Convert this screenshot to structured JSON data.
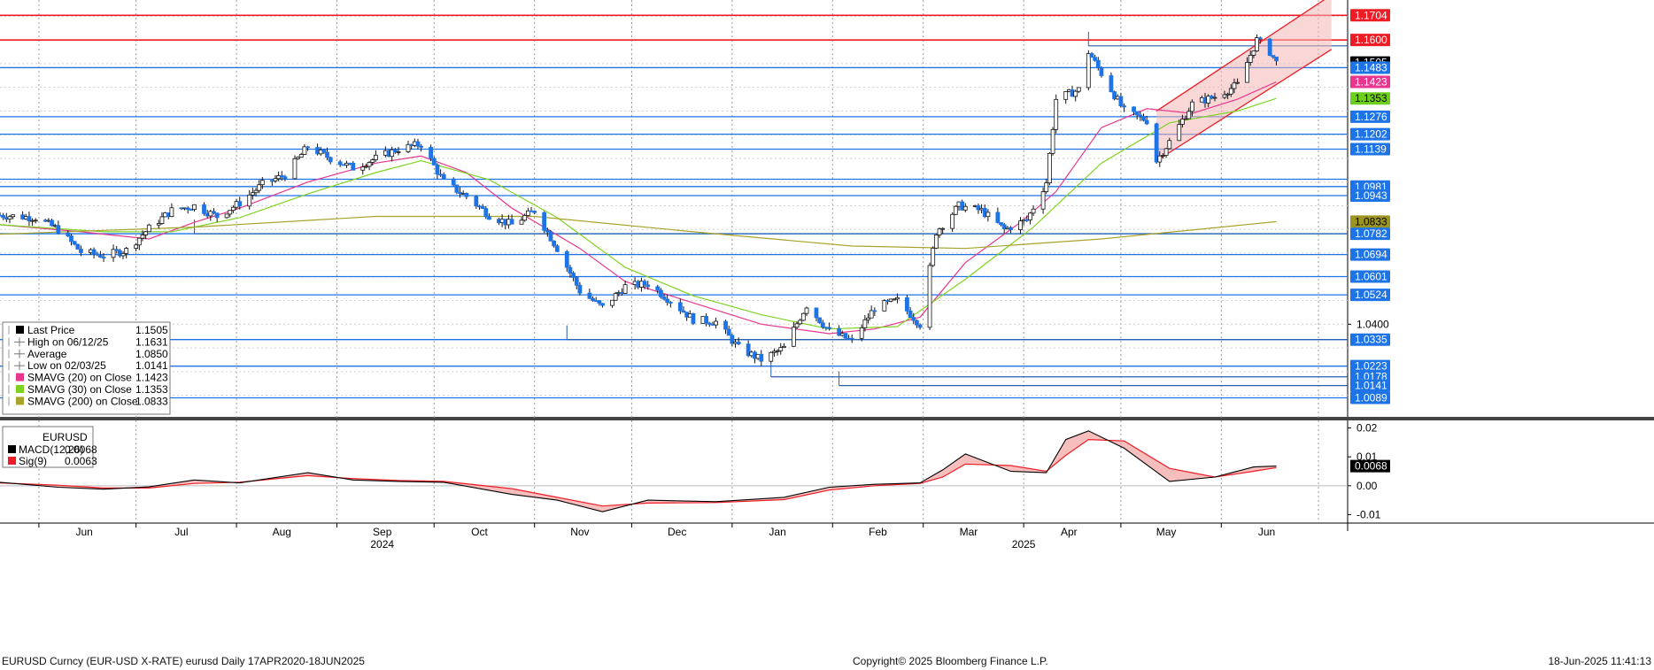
{
  "footer": {
    "left": "EURUSD Curncy (EUR-USD X-RATE) eurusd  Daily 17APR2020-18JUN2025",
    "center": "Copyright© 2025 Bloomberg Finance L.P.",
    "right": "18-Jun-2025 11:41:13"
  },
  "colors": {
    "candle": "#1e74e6",
    "hline": "#1e74e6",
    "resistance": "#ee1c25",
    "sma20": "#e8368f",
    "sma30": "#7ed321",
    "sma200": "#a8a32a",
    "macd": "#000000",
    "signal": "#ee1c25",
    "channel_fill": "#f4b6b6"
  },
  "chart_data": {
    "type": "candlestick",
    "x_axis": {
      "month_labels": [
        "Jun",
        "Jul",
        "Aug",
        "Sep",
        "Oct",
        "Nov",
        "Dec",
        "Jan",
        "Feb",
        "Mar",
        "Apr",
        "May",
        "Jun"
      ],
      "year_labels": [
        "2024",
        "2025"
      ],
      "start": "2024-05-20",
      "end": "2025-07-10"
    },
    "price_axis": {
      "min": 1.002,
      "max": 1.175,
      "tick_labels": [
        {
          "value": 1.1704,
          "label": "1.1704",
          "style": "red"
        },
        {
          "value": 1.16,
          "label": "1.1600",
          "style": "red"
        },
        {
          "value": 1.1505,
          "label": "1.1505",
          "style": "black"
        },
        {
          "value": 1.1483,
          "label": "1.1483",
          "style": "blue"
        },
        {
          "value": 1.1423,
          "label": "1.1423",
          "style": "pink"
        },
        {
          "value": 1.1353,
          "label": "1.1353",
          "style": "green"
        },
        {
          "value": 1.1276,
          "label": "1.1276",
          "style": "blue"
        },
        {
          "value": 1.1202,
          "label": "1.1202",
          "style": "blue"
        },
        {
          "value": 1.1139,
          "label": "1.1139",
          "style": "blue"
        },
        {
          "value": 1.0981,
          "label": "1.0981",
          "style": "blue"
        },
        {
          "value": 1.0943,
          "label": "1.0943",
          "style": "blue"
        },
        {
          "value": 1.0833,
          "label": "1.0833",
          "style": "olive"
        },
        {
          "value": 1.0782,
          "label": "1.0782",
          "style": "blue"
        },
        {
          "value": 1.0694,
          "label": "1.0694",
          "style": "blue"
        },
        {
          "value": 1.0601,
          "label": "1.0601",
          "style": "blue"
        },
        {
          "value": 1.0524,
          "label": "1.0524",
          "style": "blue"
        },
        {
          "value": 1.04,
          "label": "1.0400",
          "style": "plain"
        },
        {
          "value": 1.0335,
          "label": "1.0335",
          "style": "blue"
        },
        {
          "value": 1.0223,
          "label": "1.0223",
          "style": "blue"
        },
        {
          "value": 1.0178,
          "label": "1.0178",
          "style": "blue"
        },
        {
          "value": 1.0141,
          "label": "1.0141",
          "style": "blue"
        },
        {
          "value": 1.0089,
          "label": "1.0089",
          "style": "blue"
        }
      ]
    },
    "horizontal_levels": [
      {
        "value": 1.1704,
        "color": "resistance"
      },
      {
        "value": 1.16,
        "color": "resistance"
      },
      {
        "value": 1.1483,
        "color": "hline"
      },
      {
        "value": 1.1276,
        "color": "hline"
      },
      {
        "value": 1.1202,
        "color": "hline"
      },
      {
        "value": 1.1139,
        "color": "hline"
      },
      {
        "value": 1.1012,
        "color": "hline"
      },
      {
        "value": 1.0981,
        "color": "hline"
      },
      {
        "value": 1.0943,
        "color": "hline"
      },
      {
        "value": 1.0782,
        "color": "hline"
      },
      {
        "value": 1.0694,
        "color": "hline"
      },
      {
        "value": 1.0601,
        "color": "hline"
      },
      {
        "value": 1.0524,
        "color": "hline"
      },
      {
        "value": 1.0335,
        "color": "hline"
      },
      {
        "value": 1.0223,
        "color": "hline"
      },
      {
        "value": 1.0089,
        "color": "hline"
      }
    ],
    "anchored_levels": [
      {
        "from": "2024-07-19",
        "value": 1.0782
      },
      {
        "from": "2024-11-11",
        "value": 1.0335
      },
      {
        "from": "2025-01-13",
        "value": 1.0178
      },
      {
        "from": "2025-02-03",
        "value": 1.0141
      },
      {
        "from": "2025-04-21",
        "value": 1.1575
      }
    ],
    "price_path": [
      [
        "2024-05-20",
        1.086
      ],
      [
        "2024-05-31",
        1.085
      ],
      [
        "2024-06-07",
        1.08
      ],
      [
        "2024-06-14",
        1.0705
      ],
      [
        "2024-06-21",
        1.069
      ],
      [
        "2024-06-28",
        1.0712
      ],
      [
        "2024-07-05",
        1.0805
      ],
      [
        "2024-07-12",
        1.088
      ],
      [
        "2024-07-19",
        1.09
      ],
      [
        "2024-07-26",
        1.0855
      ],
      [
        "2024-08-02",
        1.0912
      ],
      [
        "2024-08-09",
        1.099
      ],
      [
        "2024-08-16",
        1.103
      ],
      [
        "2024-08-23",
        1.115
      ],
      [
        "2024-08-30",
        1.11
      ],
      [
        "2024-09-06",
        1.106
      ],
      [
        "2024-09-13",
        1.11
      ],
      [
        "2024-09-20",
        1.114
      ],
      [
        "2024-09-27",
        1.116
      ],
      [
        "2024-10-04",
        1.1
      ],
      [
        "2024-10-11",
        1.094
      ],
      [
        "2024-10-18",
        1.086
      ],
      [
        "2024-10-25",
        1.082
      ],
      [
        "2024-11-01",
        1.088
      ],
      [
        "2024-11-08",
        1.072
      ],
      [
        "2024-11-15",
        1.054
      ],
      [
        "2024-11-22",
        1.047
      ],
      [
        "2024-11-29",
        1.056
      ],
      [
        "2024-12-06",
        1.057
      ],
      [
        "2024-12-13",
        1.05
      ],
      [
        "2024-12-20",
        1.042
      ],
      [
        "2024-12-27",
        1.041
      ],
      [
        "2025-01-03",
        1.03
      ],
      [
        "2025-01-10",
        1.025
      ],
      [
        "2025-01-17",
        1.03
      ],
      [
        "2025-01-24",
        1.048
      ],
      [
        "2025-01-31",
        1.037
      ],
      [
        "2025-02-07",
        1.033
      ],
      [
        "2025-02-14",
        1.047
      ],
      [
        "2025-02-21",
        1.05
      ],
      [
        "2025-02-28",
        1.04
      ],
      [
        "2025-03-05",
        1.079
      ],
      [
        "2025-03-12",
        1.09
      ],
      [
        "2025-03-19",
        1.088
      ],
      [
        "2025-03-26",
        1.08
      ],
      [
        "2025-04-02",
        1.084
      ],
      [
        "2025-04-08",
        1.1
      ],
      [
        "2025-04-11",
        1.135
      ],
      [
        "2025-04-18",
        1.139
      ],
      [
        "2025-04-21",
        1.155
      ],
      [
        "2025-04-28",
        1.139
      ],
      [
        "2025-05-02",
        1.13
      ],
      [
        "2025-05-09",
        1.126
      ],
      [
        "2025-05-12",
        1.109
      ],
      [
        "2025-05-16",
        1.117
      ],
      [
        "2025-05-23",
        1.133
      ],
      [
        "2025-05-30",
        1.136
      ],
      [
        "2025-06-06",
        1.141
      ],
      [
        "2025-06-12",
        1.16
      ],
      [
        "2025-06-16",
        1.155
      ],
      [
        "2025-06-18",
        1.1505
      ]
    ],
    "series": [
      {
        "name": "SMAVG (20)  on Close",
        "color": "sma20",
        "points": [
          [
            "2024-05-20",
            1.082
          ],
          [
            "2024-06-14",
            1.079
          ],
          [
            "2024-07-05",
            1.076
          ],
          [
            "2024-07-19",
            1.083
          ],
          [
            "2024-08-02",
            1.089
          ],
          [
            "2024-08-23",
            1.1
          ],
          [
            "2024-09-13",
            1.108
          ],
          [
            "2024-09-27",
            1.111
          ],
          [
            "2024-10-11",
            1.104
          ],
          [
            "2024-10-25",
            1.089
          ],
          [
            "2024-11-15",
            1.072
          ],
          [
            "2024-11-29",
            1.058
          ],
          [
            "2024-12-20",
            1.049
          ],
          [
            "2025-01-10",
            1.04
          ],
          [
            "2025-01-31",
            1.036
          ],
          [
            "2025-02-14",
            1.038
          ],
          [
            "2025-02-28",
            1.043
          ],
          [
            "2025-03-14",
            1.066
          ],
          [
            "2025-03-31",
            1.083
          ],
          [
            "2025-04-11",
            1.096
          ],
          [
            "2025-04-25",
            1.123
          ],
          [
            "2025-05-09",
            1.131
          ],
          [
            "2025-05-23",
            1.129
          ],
          [
            "2025-06-06",
            1.135
          ],
          [
            "2025-06-18",
            1.1423
          ]
        ]
      },
      {
        "name": "SMAVG (30)  on Close",
        "color": "sma30",
        "points": [
          [
            "2024-05-20",
            1.082
          ],
          [
            "2024-06-21",
            1.079
          ],
          [
            "2024-07-12",
            1.079
          ],
          [
            "2024-08-02",
            1.085
          ],
          [
            "2024-08-23",
            1.095
          ],
          [
            "2024-09-13",
            1.104
          ],
          [
            "2024-09-27",
            1.109
          ],
          [
            "2024-10-18",
            1.101
          ],
          [
            "2024-11-08",
            1.085
          ],
          [
            "2024-11-29",
            1.064
          ],
          [
            "2024-12-20",
            1.052
          ],
          [
            "2025-01-10",
            1.044
          ],
          [
            "2025-01-31",
            1.038
          ],
          [
            "2025-02-21",
            1.039
          ],
          [
            "2025-03-14",
            1.059
          ],
          [
            "2025-04-04",
            1.081
          ],
          [
            "2025-04-25",
            1.108
          ],
          [
            "2025-05-16",
            1.125
          ],
          [
            "2025-06-06",
            1.13
          ],
          [
            "2025-06-18",
            1.1353
          ]
        ]
      },
      {
        "name": "SMAVG (200)  on Close",
        "color": "sma200",
        "points": [
          [
            "2024-05-20",
            1.078
          ],
          [
            "2024-07-19",
            1.081
          ],
          [
            "2024-09-13",
            1.0855
          ],
          [
            "2024-11-01",
            1.0855
          ],
          [
            "2024-12-20",
            1.079
          ],
          [
            "2025-02-07",
            1.073
          ],
          [
            "2025-03-14",
            1.072
          ],
          [
            "2025-04-25",
            1.076
          ],
          [
            "2025-06-18",
            1.0833
          ]
        ]
      }
    ],
    "channel": {
      "start": "2025-05-12",
      "end": "2025-07-05",
      "lower_start": 1.109,
      "lower_end": 1.156,
      "upper_start": 1.13,
      "upper_end": 1.179
    },
    "legend": [
      {
        "marker": "black",
        "label": "Last Price",
        "value": "1.1505"
      },
      {
        "marker": "high",
        "label": "High on 06/12/25",
        "value": "1.1631"
      },
      {
        "marker": "avg",
        "label": "Average",
        "value": "1.0850"
      },
      {
        "marker": "low",
        "label": "Low on 02/03/25",
        "value": "1.0141"
      },
      {
        "marker": "pink",
        "label": "SMAVG (20)  on Close",
        "value": "1.1423"
      },
      {
        "marker": "green",
        "label": "SMAVG (30)  on Close",
        "value": "1.1353"
      },
      {
        "marker": "olive",
        "label": "SMAVG (200)  on Close",
        "value": "1.0833"
      }
    ],
    "macd": {
      "title": "EURUSD",
      "legend": [
        {
          "marker": "black",
          "label": "MACD(12,26)",
          "value": "0.0068"
        },
        {
          "marker": "red",
          "label": "Sig(9)",
          "value": "0.0063"
        }
      ],
      "ylim": [
        -0.012,
        0.022
      ],
      "ticks": [
        {
          "value": 0.02,
          "label": "0.02"
        },
        {
          "value": 0.01,
          "label": "0.01"
        },
        {
          "value": 0.0,
          "label": "0.00"
        },
        {
          "value": -0.01,
          "label": "-0.01"
        }
      ],
      "last_label": "0.0068",
      "macd_points": [
        [
          "2024-05-20",
          0.0012
        ],
        [
          "2024-06-07",
          -0.0005
        ],
        [
          "2024-06-21",
          -0.0012
        ],
        [
          "2024-07-05",
          -0.0004
        ],
        [
          "2024-07-19",
          0.002
        ],
        [
          "2024-08-02",
          0.001
        ],
        [
          "2024-08-23",
          0.0045
        ],
        [
          "2024-09-06",
          0.002
        ],
        [
          "2024-09-20",
          0.0015
        ],
        [
          "2024-10-04",
          0.0012
        ],
        [
          "2024-10-25",
          -0.003
        ],
        [
          "2024-11-08",
          -0.005
        ],
        [
          "2024-11-22",
          -0.009
        ],
        [
          "2024-12-06",
          -0.005
        ],
        [
          "2024-12-27",
          -0.0055
        ],
        [
          "2025-01-17",
          -0.004
        ],
        [
          "2025-01-31",
          -0.0005
        ],
        [
          "2025-02-14",
          0.0005
        ],
        [
          "2025-02-28",
          0.001
        ],
        [
          "2025-03-07",
          0.0055
        ],
        [
          "2025-03-14",
          0.011
        ],
        [
          "2025-03-28",
          0.005
        ],
        [
          "2025-04-08",
          0.0045
        ],
        [
          "2025-04-14",
          0.016
        ],
        [
          "2025-04-21",
          0.019
        ],
        [
          "2025-05-02",
          0.013
        ],
        [
          "2025-05-16",
          0.0015
        ],
        [
          "2025-05-30",
          0.003
        ],
        [
          "2025-06-11",
          0.0065
        ],
        [
          "2025-06-18",
          0.0068
        ]
      ],
      "signal_points": [
        [
          "2024-05-20",
          0.001
        ],
        [
          "2024-06-07",
          0.0002
        ],
        [
          "2024-06-21",
          -0.0008
        ],
        [
          "2024-07-05",
          -0.0008
        ],
        [
          "2024-07-19",
          0.0008
        ],
        [
          "2024-08-02",
          0.0012
        ],
        [
          "2024-08-23",
          0.0035
        ],
        [
          "2024-09-06",
          0.0025
        ],
        [
          "2024-09-20",
          0.0018
        ],
        [
          "2024-10-04",
          0.0015
        ],
        [
          "2024-10-25",
          -0.001
        ],
        [
          "2024-11-08",
          -0.004
        ],
        [
          "2024-11-22",
          -0.007
        ],
        [
          "2024-12-06",
          -0.006
        ],
        [
          "2024-12-27",
          -0.0058
        ],
        [
          "2025-01-17",
          -0.0048
        ],
        [
          "2025-01-31",
          -0.0015
        ],
        [
          "2025-02-14",
          0.0
        ],
        [
          "2025-02-28",
          0.0008
        ],
        [
          "2025-03-07",
          0.003
        ],
        [
          "2025-03-14",
          0.0075
        ],
        [
          "2025-03-28",
          0.007
        ],
        [
          "2025-04-08",
          0.005
        ],
        [
          "2025-04-14",
          0.0105
        ],
        [
          "2025-04-21",
          0.016
        ],
        [
          "2025-05-02",
          0.0155
        ],
        [
          "2025-05-16",
          0.006
        ],
        [
          "2025-05-30",
          0.003
        ],
        [
          "2025-06-11",
          0.005
        ],
        [
          "2025-06-18",
          0.0063
        ]
      ]
    }
  }
}
